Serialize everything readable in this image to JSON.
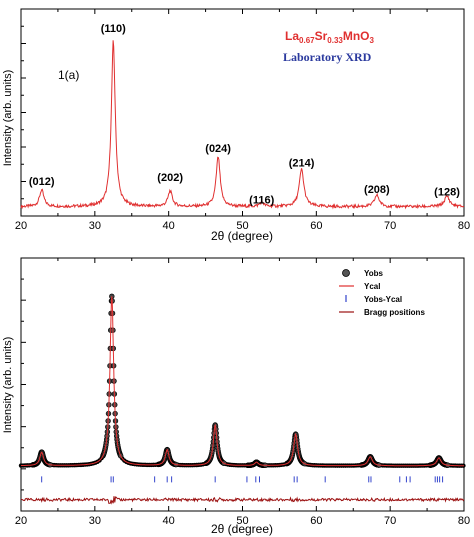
{
  "chart_data": [
    {
      "type": "line",
      "panel_label": "1(a)",
      "title_parts": {
        "el1": "La",
        "sub1": "0.67",
        "el2": "Sr",
        "sub2": "0.33",
        "el3": "MnO",
        "sub3": "3"
      },
      "subtitle": "Laboratory XRD",
      "xlabel": "2θ (degree)",
      "ylabel": "Intensity (arb. units)",
      "xlim": [
        20,
        80
      ],
      "ylim": [
        0,
        100
      ],
      "xticks": [
        "20",
        "30",
        "40",
        "50",
        "60",
        "70",
        "80"
      ],
      "grid": false,
      "color": "#e03030",
      "background_level": 4.5,
      "peaks": [
        {
          "x": 22.8,
          "height": 8,
          "width": 0.35
        },
        {
          "x": 32.5,
          "height": 80,
          "width": 0.32
        },
        {
          "x": 40.2,
          "height": 7.5,
          "width": 0.35
        },
        {
          "x": 46.7,
          "height": 24,
          "width": 0.33
        },
        {
          "x": 52.6,
          "height": 2,
          "width": 0.35
        },
        {
          "x": 58.0,
          "height": 18,
          "width": 0.38
        },
        {
          "x": 68.2,
          "height": 5.5,
          "width": 0.4
        },
        {
          "x": 77.7,
          "height": 5,
          "width": 0.42
        }
      ],
      "annotations": [
        {
          "text": "(012)",
          "x": 22.8,
          "y": 15
        },
        {
          "text": "(110)",
          "x": 32.5,
          "y": 89
        },
        {
          "text": "(202)",
          "x": 40.2,
          "y": 17
        },
        {
          "text": "(024)",
          "x": 46.7,
          "y": 31
        },
        {
          "text": "(116)",
          "x": 52.6,
          "y": 6
        },
        {
          "text": "(214)",
          "x": 58.0,
          "y": 24
        },
        {
          "text": "(208)",
          "x": 68.2,
          "y": 11
        },
        {
          "text": "(128)",
          "x": 77.7,
          "y": 10
        }
      ]
    },
    {
      "type": "scatter",
      "xlabel": "2θ (degree)",
      "ylabel": "Intensity (arb. units)",
      "xlim": [
        20,
        80
      ],
      "ylim": [
        -12,
        100
      ],
      "xticks": [
        "20",
        "30",
        "40",
        "50",
        "60",
        "70",
        "80"
      ],
      "grid": false,
      "legend_position": "top-right",
      "legend": [
        {
          "name": "Yobs",
          "marker": "circle",
          "color": "#000000"
        },
        {
          "name": "Ycal",
          "marker": "line",
          "color": "#e03030"
        },
        {
          "name": "Yobs-Ycal",
          "marker": "tick",
          "color": "#3344cc"
        },
        {
          "name": "Bragg positions",
          "marker": "line",
          "color": "#9b1010"
        }
      ],
      "baseline_level": 8,
      "peaks": [
        {
          "x": 22.8,
          "height": 6,
          "width": 0.3
        },
        {
          "x": 32.3,
          "height": 75,
          "width": 0.3
        },
        {
          "x": 39.8,
          "height": 7,
          "width": 0.3
        },
        {
          "x": 46.3,
          "height": 18,
          "width": 0.3
        },
        {
          "x": 51.9,
          "height": 1.5,
          "width": 0.3
        },
        {
          "x": 57.2,
          "height": 14,
          "width": 0.32
        },
        {
          "x": 67.3,
          "height": 4,
          "width": 0.35
        },
        {
          "x": 76.6,
          "height": 3.5,
          "width": 0.35
        }
      ],
      "bragg_positions": [
        22.8,
        32.2,
        32.5,
        38.1,
        39.8,
        40.4,
        46.3,
        50.6,
        51.8,
        52.3,
        57.0,
        57.4,
        61.2,
        67.1,
        67.4,
        71.3,
        72.2,
        72.7,
        76.1,
        76.4,
        76.7,
        77.1
      ],
      "bragg_level": 2,
      "difference_level": -7
    }
  ]
}
